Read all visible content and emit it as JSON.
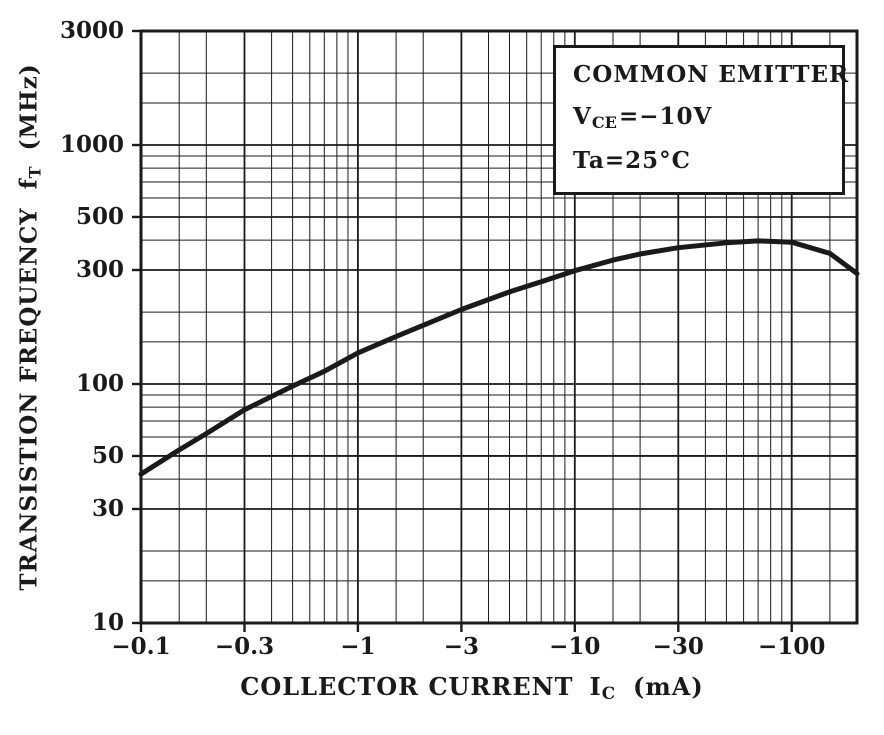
{
  "figure": {
    "bg": "#ffffff",
    "ink": "#1a1a1a"
  },
  "legend": {
    "line1": "COMMON EMITTER",
    "vce_pre": "V",
    "vce_sub": "CE",
    "vce_post": "=−10V",
    "ta": "Ta=25°C"
  },
  "y_axis_title": {
    "text": "TRANSISTION FREQUENCY",
    "sym": "f",
    "sub": "T",
    "unit": "(MHz)"
  },
  "x_axis_title": {
    "text": "COLLECTOR CURRENT",
    "sym": "I",
    "sub": "C",
    "unit": "(mA)"
  },
  "chart_data": {
    "type": "line",
    "title": "",
    "conditions": [
      "COMMON EMITTER",
      "VCE=−10V",
      "Ta=25°C"
    ],
    "x_axis": {
      "label": "COLLECTOR CURRENT IC (mA)",
      "scale": "log",
      "polarity": "negative",
      "abs_range": [
        0.1,
        200
      ],
      "ticks": [
        {
          "value": 0.1,
          "label": "−0.1"
        },
        {
          "value": 0.3,
          "label": "−0.3"
        },
        {
          "value": 1,
          "label": "−1"
        },
        {
          "value": 3,
          "label": "−3"
        },
        {
          "value": 10,
          "label": "−10"
        },
        {
          "value": 30,
          "label": "−30"
        },
        {
          "value": 100,
          "label": "−100"
        }
      ]
    },
    "y_axis": {
      "label": "TRANSISTION FREQUENCY fT (MHz)",
      "scale": "log",
      "range": [
        10,
        3000
      ],
      "ticks": [
        {
          "value": 3000,
          "label": "3000"
        },
        {
          "value": 1000,
          "label": "1000"
        },
        {
          "value": 500,
          "label": "500"
        },
        {
          "value": 300,
          "label": "300"
        },
        {
          "value": 100,
          "label": "100"
        },
        {
          "value": 50,
          "label": "50"
        },
        {
          "value": 30,
          "label": "30"
        },
        {
          "value": 10,
          "label": "10"
        }
      ]
    },
    "series": [
      {
        "name": "fT vs |IC|",
        "x_unit": "mA (absolute value)",
        "y_unit": "MHz",
        "points_abs": [
          [
            0.1,
            42
          ],
          [
            0.15,
            53
          ],
          [
            0.2,
            62
          ],
          [
            0.3,
            78
          ],
          [
            0.5,
            98
          ],
          [
            0.7,
            113
          ],
          [
            1,
            135
          ],
          [
            1.5,
            158
          ],
          [
            2,
            176
          ],
          [
            3,
            205
          ],
          [
            5,
            243
          ],
          [
            7,
            268
          ],
          [
            10,
            298
          ],
          [
            15,
            330
          ],
          [
            20,
            350
          ],
          [
            30,
            372
          ],
          [
            50,
            390
          ],
          [
            70,
            397
          ],
          [
            100,
            392
          ],
          [
            150,
            352
          ],
          [
            200,
            290
          ]
        ]
      }
    ],
    "grid": {
      "style": "log-log graph paper",
      "minor_divisions": [
        1.5,
        2,
        3,
        4,
        5,
        6,
        7,
        8,
        9
      ]
    }
  }
}
